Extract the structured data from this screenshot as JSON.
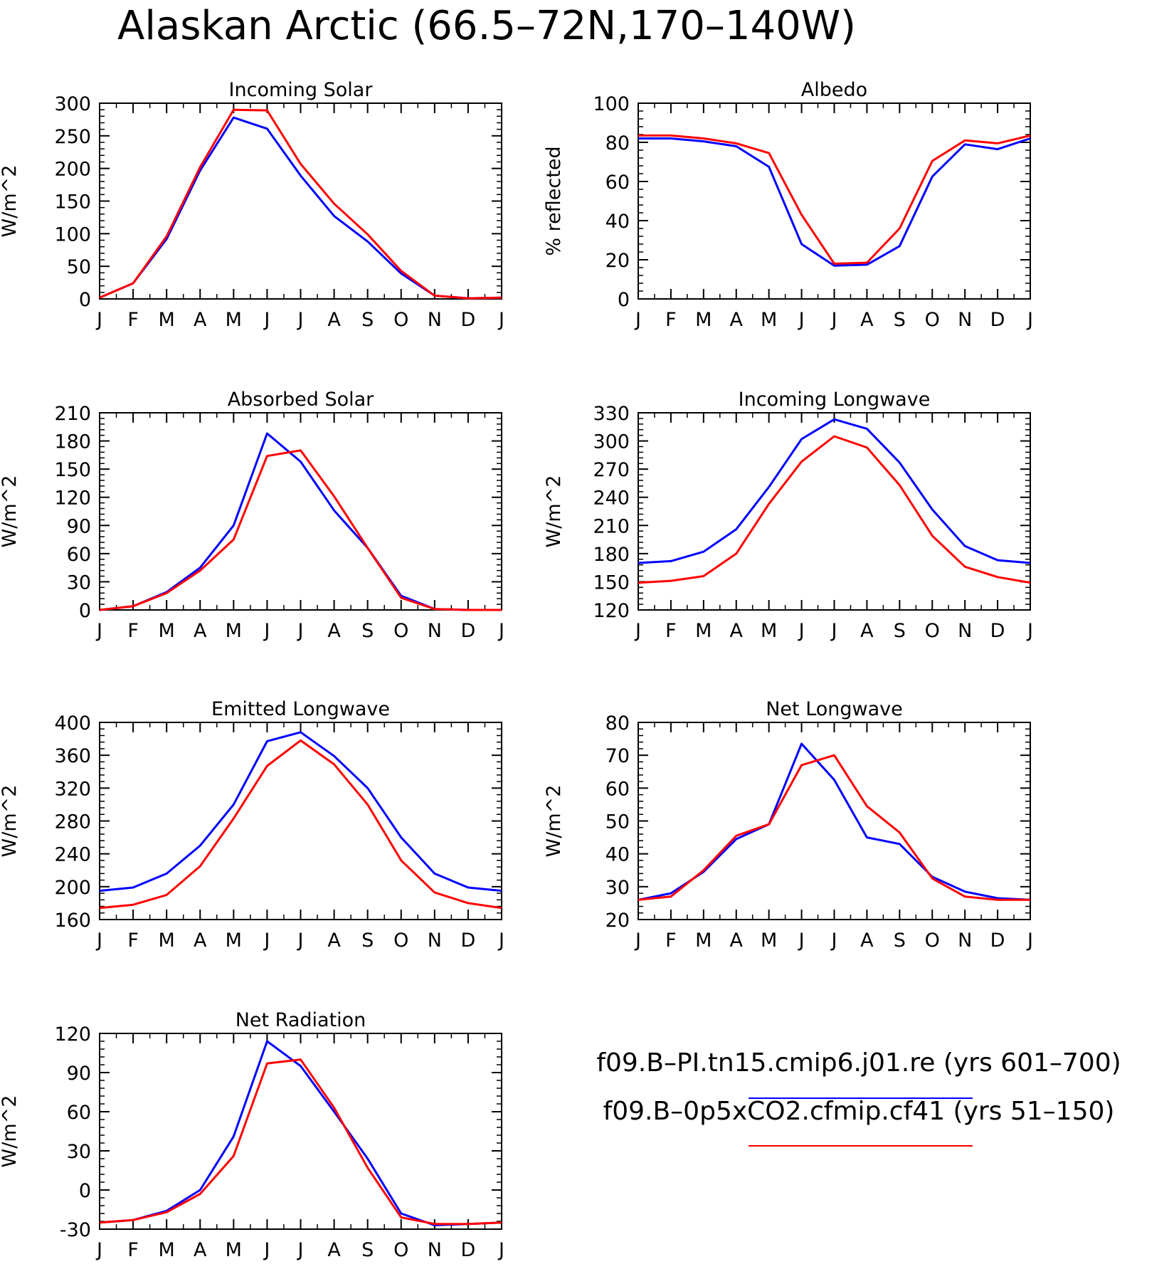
{
  "figure": {
    "title": "Alaskan Arctic (66.5–72N,170–140W)",
    "months": [
      "J",
      "F",
      "M",
      "A",
      "M",
      "J",
      "J",
      "A",
      "S",
      "O",
      "N",
      "D",
      "J"
    ]
  },
  "legend": [
    {
      "label": "f09.B–PI.tn15.cmip6.j01.re (yrs 601–700)",
      "color": "#0000ff"
    },
    {
      "label": "f09.B–0p5xCO2.cfmip.cf41 (yrs 51–150)",
      "color": "#ff0000"
    }
  ],
  "chart_data": [
    {
      "type": "line",
      "title": "Incoming Solar",
      "xlabel": "",
      "ylabel": "W/m^2",
      "ylim": [
        0,
        300
      ],
      "yticks": [
        0,
        50,
        100,
        150,
        200,
        250,
        300
      ],
      "x": [
        "J",
        "F",
        "M",
        "A",
        "M",
        "J",
        "J",
        "A",
        "S",
        "O",
        "N",
        "D",
        "J"
      ],
      "series": [
        {
          "color": "#0000ff",
          "values": [
            2,
            24,
            92,
            197,
            278,
            261,
            189,
            127,
            88,
            39,
            5,
            1,
            2
          ]
        },
        {
          "color": "#ff0000",
          "values": [
            2,
            24,
            96,
            202,
            290,
            289,
            207,
            146,
            99,
            43,
            5,
            1,
            2
          ]
        }
      ]
    },
    {
      "type": "line",
      "title": "Albedo",
      "xlabel": "",
      "ylabel": "% reflected",
      "ylim": [
        0,
        100
      ],
      "yticks": [
        0,
        20,
        40,
        60,
        80,
        100
      ],
      "x": [
        "J",
        "F",
        "M",
        "A",
        "M",
        "J",
        "J",
        "A",
        "S",
        "O",
        "N",
        "D",
        "J"
      ],
      "series": [
        {
          "color": "#0000ff",
          "values": [
            82,
            82,
            80.5,
            78,
            67.5,
            28,
            17,
            17.5,
            27,
            62.5,
            79,
            76.5,
            82
          ]
        },
        {
          "color": "#ff0000",
          "values": [
            83.5,
            83.5,
            82,
            79.5,
            74.5,
            43,
            18,
            18.5,
            36,
            70.5,
            81,
            79.5,
            83.5
          ]
        }
      ]
    },
    {
      "type": "line",
      "title": "Absorbed Solar",
      "xlabel": "",
      "ylabel": "W/m^2",
      "ylim": [
        0,
        210
      ],
      "yticks": [
        0,
        30,
        60,
        90,
        120,
        150,
        180,
        210
      ],
      "x": [
        "J",
        "F",
        "M",
        "A",
        "M",
        "J",
        "J",
        "A",
        "S",
        "O",
        "N",
        "D",
        "J"
      ],
      "series": [
        {
          "color": "#0000ff",
          "values": [
            0,
            4,
            19,
            45,
            90,
            188,
            158,
            106,
            66,
            15,
            1,
            0,
            0
          ]
        },
        {
          "color": "#ff0000",
          "values": [
            0,
            4,
            18,
            42,
            75,
            164,
            170,
            121,
            66,
            13,
            1,
            0,
            0
          ]
        }
      ]
    },
    {
      "type": "line",
      "title": "Incoming Longwave",
      "xlabel": "",
      "ylabel": "W/m^2",
      "ylim": [
        120,
        330
      ],
      "yticks": [
        120,
        150,
        180,
        210,
        240,
        270,
        300,
        330
      ],
      "x": [
        "J",
        "F",
        "M",
        "A",
        "M",
        "J",
        "J",
        "A",
        "S",
        "O",
        "N",
        "D",
        "J"
      ],
      "series": [
        {
          "color": "#0000ff",
          "values": [
            170,
            172,
            182,
            206,
            251,
            302,
            323,
            313,
            277,
            227,
            188,
            173,
            170
          ]
        },
        {
          "color": "#ff0000",
          "values": [
            149,
            151,
            156,
            180,
            233,
            278,
            305,
            293,
            253,
            199,
            166,
            155,
            149
          ]
        }
      ]
    },
    {
      "type": "line",
      "title": "Emitted Longwave",
      "xlabel": "",
      "ylabel": "W/m^2",
      "ylim": [
        160,
        400
      ],
      "yticks": [
        160,
        200,
        240,
        280,
        320,
        360,
        400
      ],
      "x": [
        "J",
        "F",
        "M",
        "A",
        "M",
        "J",
        "J",
        "A",
        "S",
        "O",
        "N",
        "D",
        "J"
      ],
      "series": [
        {
          "color": "#0000ff",
          "values": [
            195,
            199,
            216,
            250,
            300,
            377,
            388,
            359,
            320,
            260,
            216,
            199,
            195
          ]
        },
        {
          "color": "#ff0000",
          "values": [
            174,
            178,
            190,
            225,
            283,
            347,
            378,
            349,
            300,
            232,
            193,
            180,
            174
          ]
        }
      ]
    },
    {
      "type": "line",
      "title": "Net Longwave",
      "xlabel": "",
      "ylabel": "W/m^2",
      "ylim": [
        20,
        80
      ],
      "yticks": [
        20,
        30,
        40,
        50,
        60,
        70,
        80
      ],
      "x": [
        "J",
        "F",
        "M",
        "A",
        "M",
        "J",
        "J",
        "A",
        "S",
        "O",
        "N",
        "D",
        "J"
      ],
      "series": [
        {
          "color": "#0000ff",
          "values": [
            26,
            28,
            34.5,
            44.5,
            49,
            73.5,
            62.5,
            45,
            43,
            33,
            28.5,
            26.5,
            26
          ]
        },
        {
          "color": "#ff0000",
          "values": [
            26,
            27,
            35,
            45.5,
            49,
            67,
            70,
            54.5,
            46.5,
            32.5,
            27,
            26,
            26
          ]
        }
      ]
    },
    {
      "type": "line",
      "title": "Net Radiation",
      "xlabel": "",
      "ylabel": "W/m^2",
      "ylim": [
        -30,
        120
      ],
      "yticks": [
        -30,
        0,
        30,
        60,
        90,
        120
      ],
      "x": [
        "J",
        "F",
        "M",
        "A",
        "M",
        "J",
        "J",
        "A",
        "S",
        "O",
        "N",
        "D",
        "J"
      ],
      "series": [
        {
          "color": "#0000ff",
          "values": [
            -25,
            -23,
            -16,
            0,
            41,
            114,
            95,
            60,
            24,
            -18,
            -27,
            -26,
            -25
          ]
        },
        {
          "color": "#ff0000",
          "values": [
            -25,
            -23,
            -17,
            -3,
            26,
            97,
            100,
            63,
            17,
            -21,
            -26,
            -26,
            -25
          ]
        }
      ]
    }
  ]
}
